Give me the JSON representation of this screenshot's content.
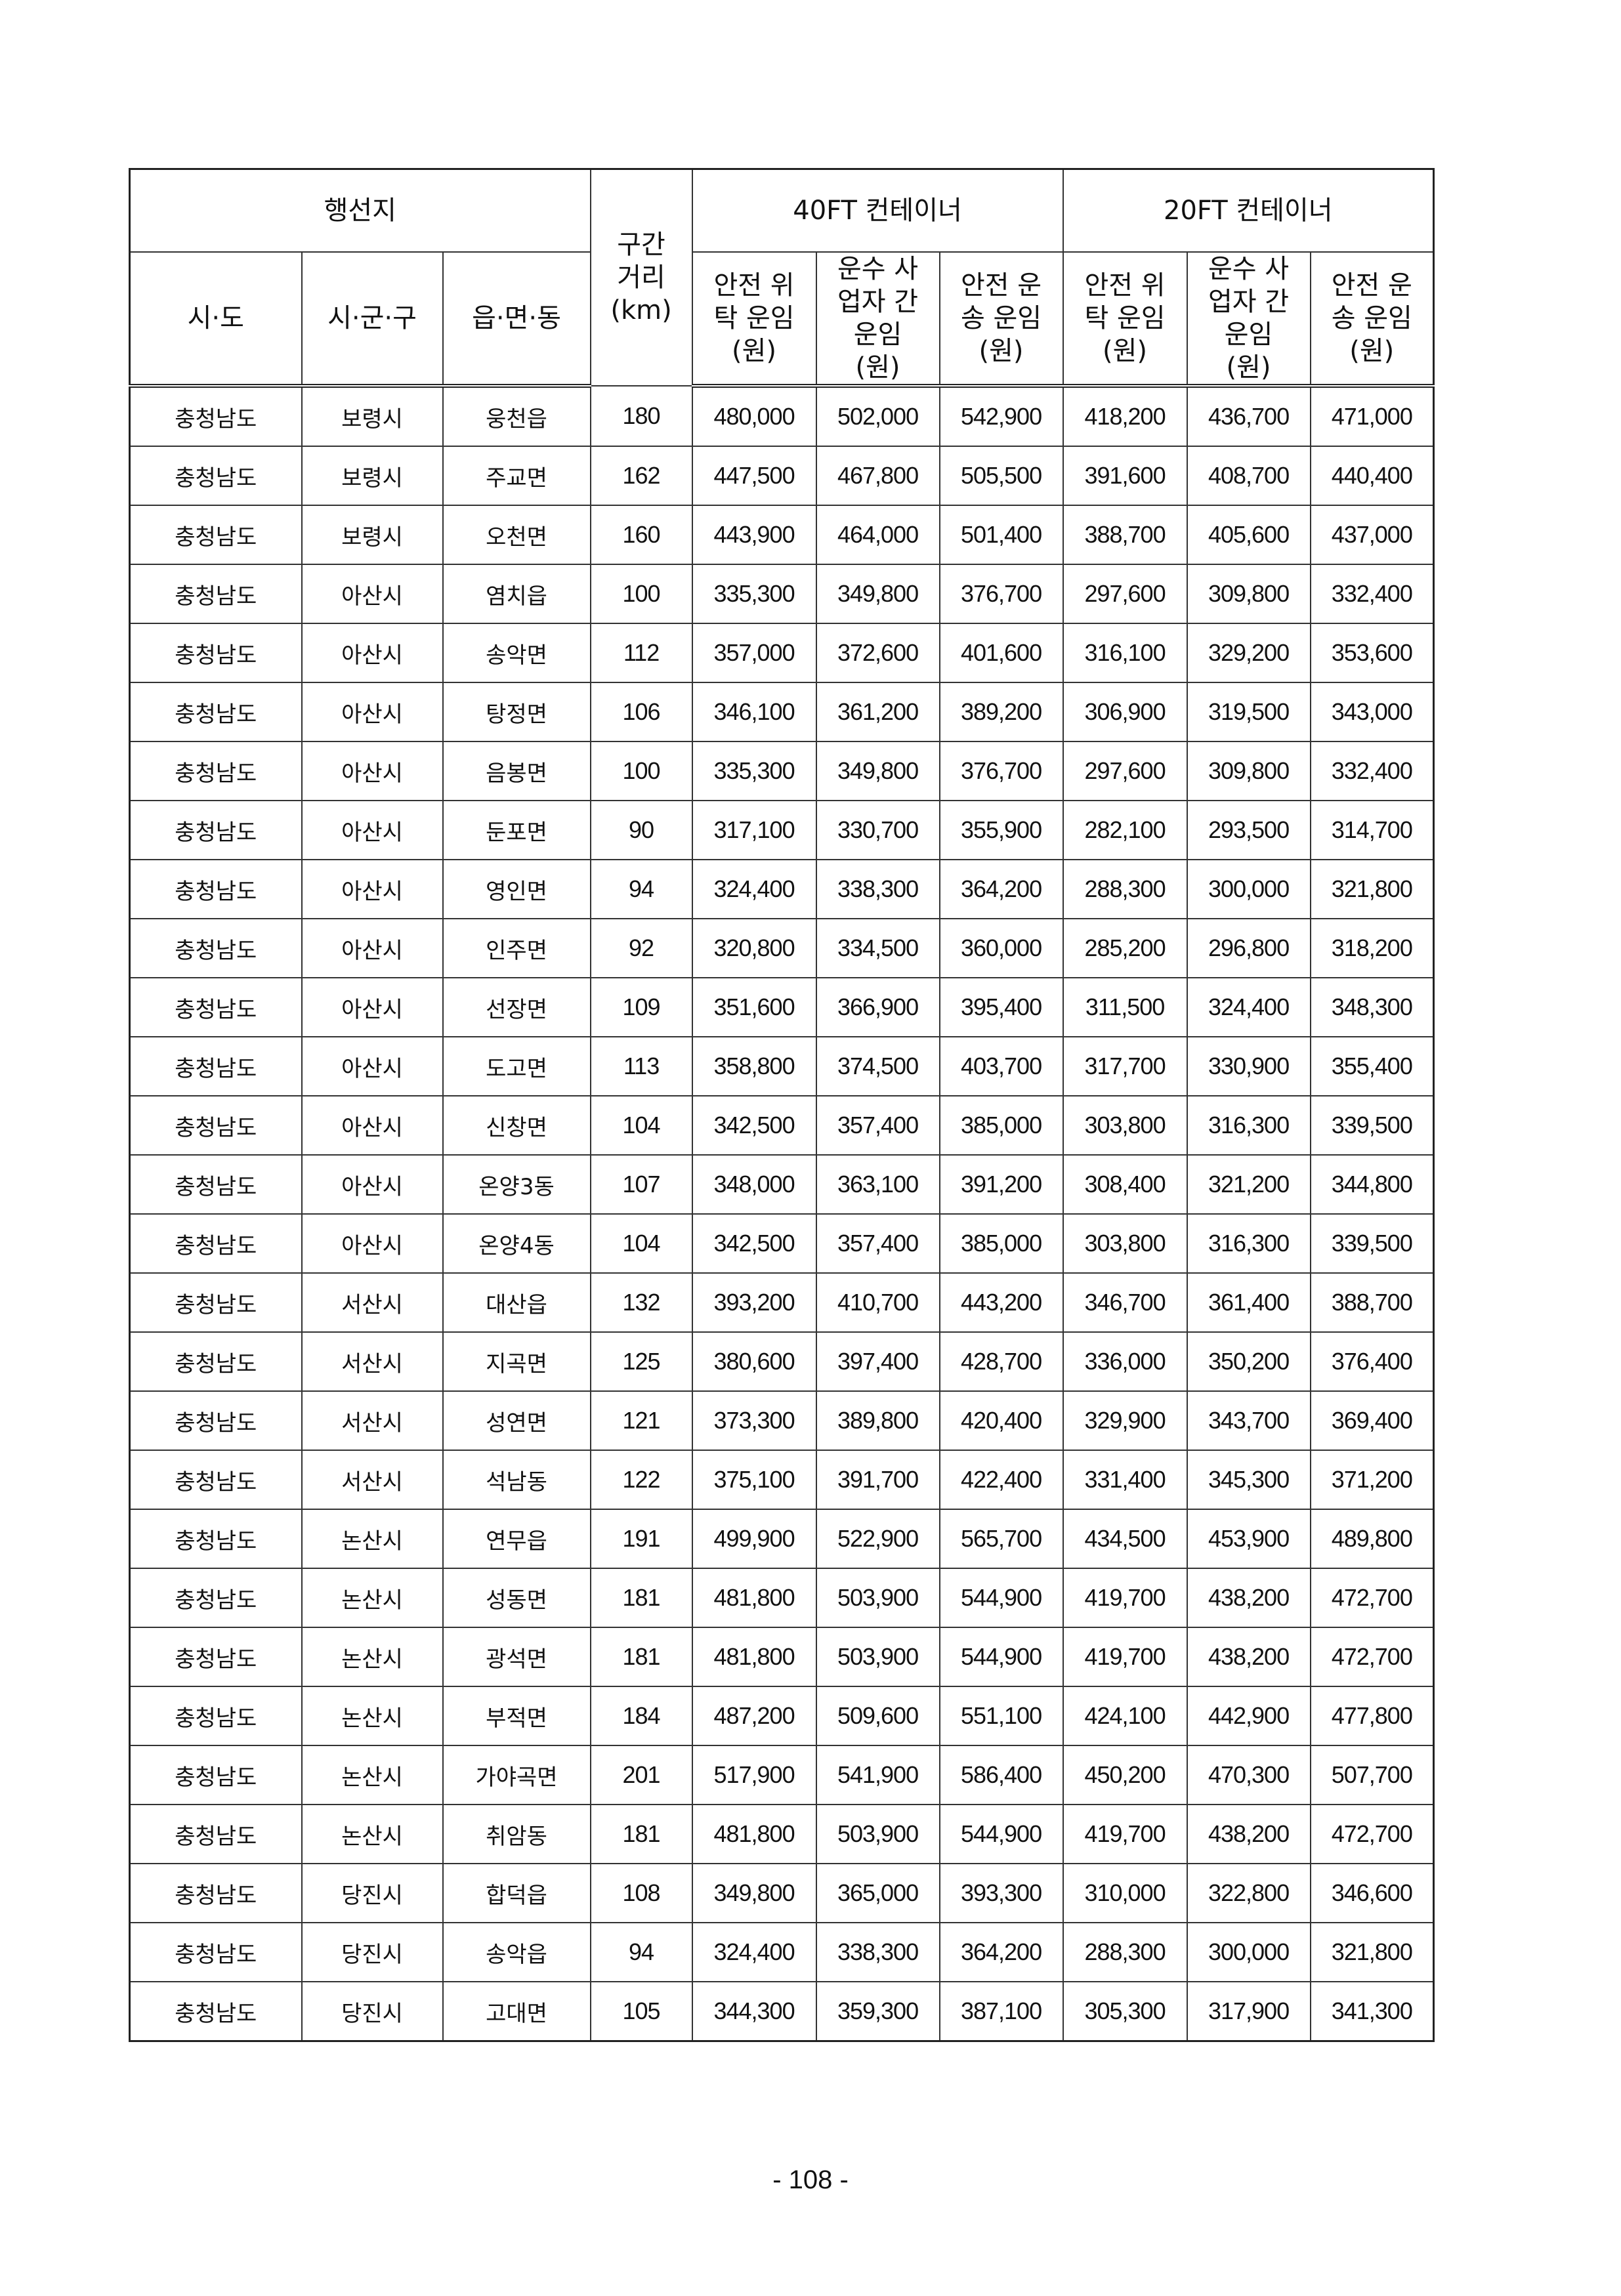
{
  "header": {
    "destination": "행선지",
    "distance": "구간 거리 (km)",
    "ft40": "40FT 컨테이너",
    "ft20": "20FT 컨테이너",
    "sido": "시·도",
    "sigungu": "시·군·구",
    "eupmyeondong": "읍·면·동",
    "rate_cols": [
      "안전 위탁 운임 (원)",
      "운수 사업자 간 운임 (원)",
      "안전 운송 운임 (원)",
      "안전 위탁 운임 (원)",
      "운수 사업자 간 운임 (원)",
      "안전 운송 운임 (원)"
    ]
  },
  "rows": [
    [
      "충청남도",
      "보령시",
      "웅천읍",
      "180",
      "480,000",
      "502,000",
      "542,900",
      "418,200",
      "436,700",
      "471,000"
    ],
    [
      "충청남도",
      "보령시",
      "주교면",
      "162",
      "447,500",
      "467,800",
      "505,500",
      "391,600",
      "408,700",
      "440,400"
    ],
    [
      "충청남도",
      "보령시",
      "오천면",
      "160",
      "443,900",
      "464,000",
      "501,400",
      "388,700",
      "405,600",
      "437,000"
    ],
    [
      "충청남도",
      "아산시",
      "염치읍",
      "100",
      "335,300",
      "349,800",
      "376,700",
      "297,600",
      "309,800",
      "332,400"
    ],
    [
      "충청남도",
      "아산시",
      "송악면",
      "112",
      "357,000",
      "372,600",
      "401,600",
      "316,100",
      "329,200",
      "353,600"
    ],
    [
      "충청남도",
      "아산시",
      "탕정면",
      "106",
      "346,100",
      "361,200",
      "389,200",
      "306,900",
      "319,500",
      "343,000"
    ],
    [
      "충청남도",
      "아산시",
      "음봉면",
      "100",
      "335,300",
      "349,800",
      "376,700",
      "297,600",
      "309,800",
      "332,400"
    ],
    [
      "충청남도",
      "아산시",
      "둔포면",
      "90",
      "317,100",
      "330,700",
      "355,900",
      "282,100",
      "293,500",
      "314,700"
    ],
    [
      "충청남도",
      "아산시",
      "영인면",
      "94",
      "324,400",
      "338,300",
      "364,200",
      "288,300",
      "300,000",
      "321,800"
    ],
    [
      "충청남도",
      "아산시",
      "인주면",
      "92",
      "320,800",
      "334,500",
      "360,000",
      "285,200",
      "296,800",
      "318,200"
    ],
    [
      "충청남도",
      "아산시",
      "선장면",
      "109",
      "351,600",
      "366,900",
      "395,400",
      "311,500",
      "324,400",
      "348,300"
    ],
    [
      "충청남도",
      "아산시",
      "도고면",
      "113",
      "358,800",
      "374,500",
      "403,700",
      "317,700",
      "330,900",
      "355,400"
    ],
    [
      "충청남도",
      "아산시",
      "신창면",
      "104",
      "342,500",
      "357,400",
      "385,000",
      "303,800",
      "316,300",
      "339,500"
    ],
    [
      "충청남도",
      "아산시",
      "온양3동",
      "107",
      "348,000",
      "363,100",
      "391,200",
      "308,400",
      "321,200",
      "344,800"
    ],
    [
      "충청남도",
      "아산시",
      "온양4동",
      "104",
      "342,500",
      "357,400",
      "385,000",
      "303,800",
      "316,300",
      "339,500"
    ],
    [
      "충청남도",
      "서산시",
      "대산읍",
      "132",
      "393,200",
      "410,700",
      "443,200",
      "346,700",
      "361,400",
      "388,700"
    ],
    [
      "충청남도",
      "서산시",
      "지곡면",
      "125",
      "380,600",
      "397,400",
      "428,700",
      "336,000",
      "350,200",
      "376,400"
    ],
    [
      "충청남도",
      "서산시",
      "성연면",
      "121",
      "373,300",
      "389,800",
      "420,400",
      "329,900",
      "343,700",
      "369,400"
    ],
    [
      "충청남도",
      "서산시",
      "석남동",
      "122",
      "375,100",
      "391,700",
      "422,400",
      "331,400",
      "345,300",
      "371,200"
    ],
    [
      "충청남도",
      "논산시",
      "연무읍",
      "191",
      "499,900",
      "522,900",
      "565,700",
      "434,500",
      "453,900",
      "489,800"
    ],
    [
      "충청남도",
      "논산시",
      "성동면",
      "181",
      "481,800",
      "503,900",
      "544,900",
      "419,700",
      "438,200",
      "472,700"
    ],
    [
      "충청남도",
      "논산시",
      "광석면",
      "181",
      "481,800",
      "503,900",
      "544,900",
      "419,700",
      "438,200",
      "472,700"
    ],
    [
      "충청남도",
      "논산시",
      "부적면",
      "184",
      "487,200",
      "509,600",
      "551,100",
      "424,100",
      "442,900",
      "477,800"
    ],
    [
      "충청남도",
      "논산시",
      "가야곡면",
      "201",
      "517,900",
      "541,900",
      "586,400",
      "450,200",
      "470,300",
      "507,700"
    ],
    [
      "충청남도",
      "논산시",
      "취암동",
      "181",
      "481,800",
      "503,900",
      "544,900",
      "419,700",
      "438,200",
      "472,700"
    ],
    [
      "충청남도",
      "당진시",
      "합덕읍",
      "108",
      "349,800",
      "365,000",
      "393,300",
      "310,000",
      "322,800",
      "346,600"
    ],
    [
      "충청남도",
      "당진시",
      "송악읍",
      "94",
      "324,400",
      "338,300",
      "364,200",
      "288,300",
      "300,000",
      "321,800"
    ],
    [
      "충청남도",
      "당진시",
      "고대면",
      "105",
      "344,300",
      "359,300",
      "387,100",
      "305,300",
      "317,900",
      "341,300"
    ]
  ],
  "footer": {
    "page_number": "- 108 -"
  }
}
